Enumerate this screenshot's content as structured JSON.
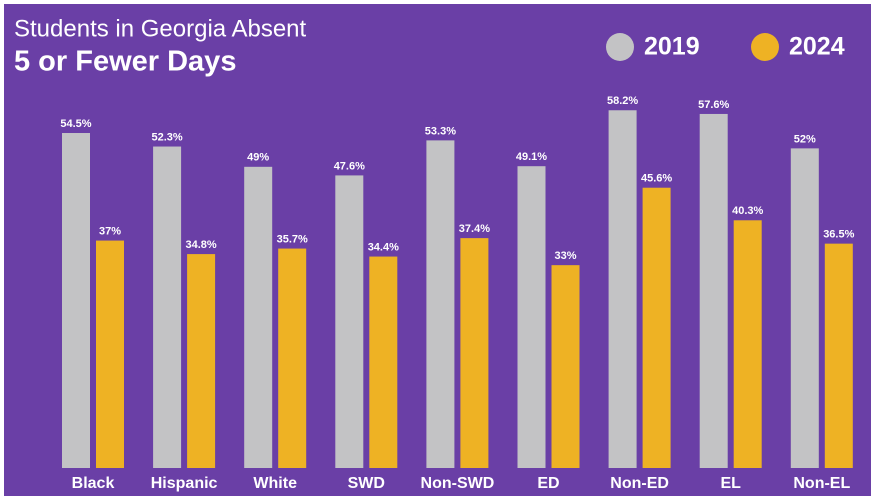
{
  "chart_data": {
    "type": "bar",
    "title": "Students in Georgia Absent",
    "subtitle": "5 or Fewer Days",
    "categories": [
      "Black",
      "Hispanic",
      "White",
      "SWD",
      "Non-SWD",
      "ED",
      "Non-ED",
      "EL",
      "Non-EL"
    ],
    "series": [
      {
        "name": "2019",
        "color": "#c3c3c5",
        "values": [
          54.5,
          52.3,
          49,
          47.6,
          53.3,
          49.1,
          58.2,
          57.6,
          52
        ],
        "value_labels": [
          "54.5%",
          "52.3%",
          "49%",
          "47.6%",
          "53.3%",
          "49.1%",
          "58.2%",
          "57.6%",
          "52%"
        ]
      },
      {
        "name": "2024",
        "color": "#eeb224",
        "values": [
          37,
          34.8,
          35.7,
          34.4,
          37.4,
          33,
          45.6,
          40.3,
          36.5
        ],
        "value_labels": [
          "37%",
          "34.8%",
          "35.7%",
          "34.4%",
          "37.4%",
          "33%",
          "45.6%",
          "40.3%",
          "36.5%"
        ]
      }
    ],
    "ylim": [
      0,
      75
    ]
  }
}
